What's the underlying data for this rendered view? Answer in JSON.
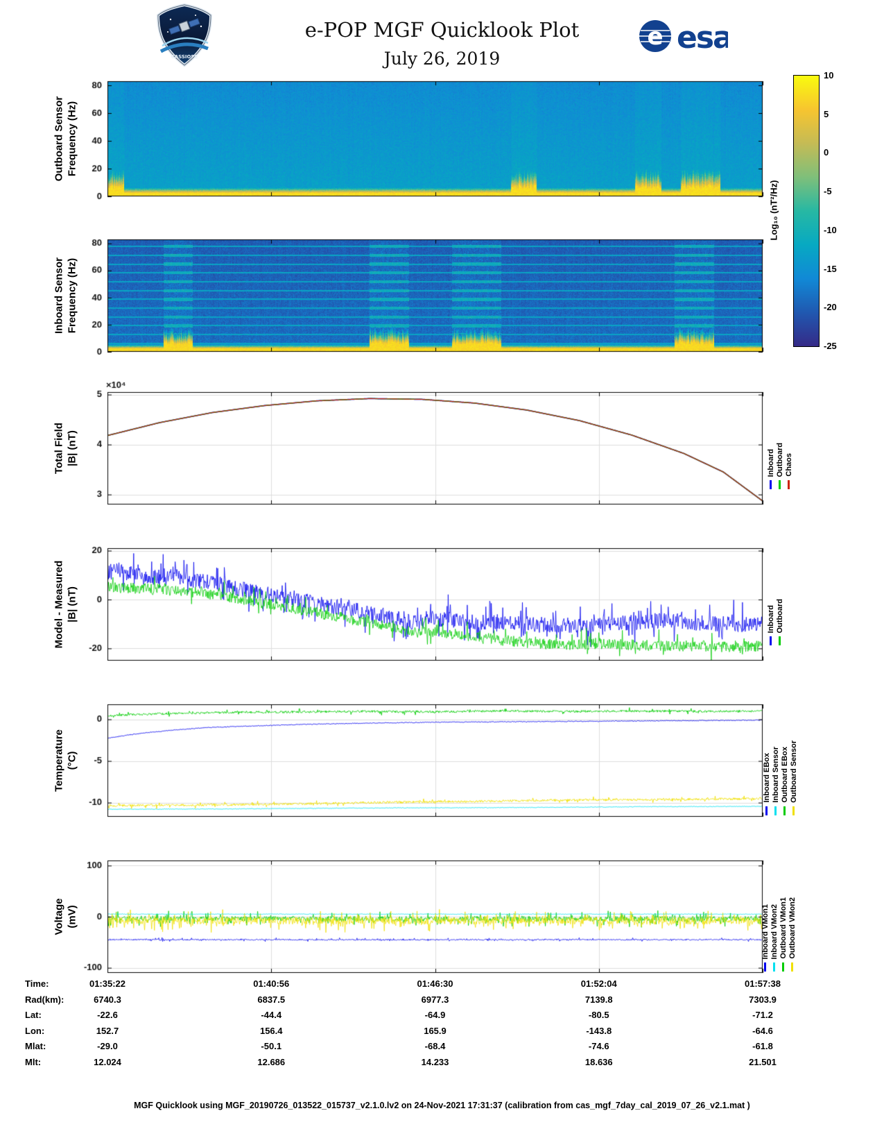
{
  "header": {
    "title": "e-POP MGF Quicklook Plot",
    "date": "July 26, 2019",
    "esa_text": "esa",
    "patch_text": "CASSIOPE",
    "esa_blue": "#12418f"
  },
  "colorbar": {
    "label": "Log₁₀ (nT²/Hz)",
    "ticks": [
      10,
      5,
      0,
      -5,
      -10,
      -15,
      -20,
      -25
    ],
    "min": -25,
    "max": 10,
    "colormap": [
      "#352a87",
      "#2058b0",
      "#1189d6",
      "#07a9c2",
      "#27b8a3",
      "#7fbf7a",
      "#c5bb55",
      "#f7c52f",
      "#f9fb0e"
    ]
  },
  "chart_data": [
    {
      "id": "spec_out",
      "type": "heatmap",
      "ylabel": "Outboard Sensor\nFrequency (Hz)",
      "yticks": [
        0,
        20,
        40,
        60,
        80
      ],
      "ymax": 83,
      "value_range": [
        -25,
        10
      ],
      "base_level": -13.0,
      "top_level": -15.8,
      "noise": 1.5,
      "col_noise": 0.7,
      "band_freq": 2.6,
      "band_level": 7.5,
      "band_fade": 6.5,
      "harmonics": [],
      "harmonic_level": 0,
      "disturbances": [
        [
          0.0,
          0.025
        ],
        [
          0.615,
          0.655
        ],
        [
          0.805,
          0.845
        ],
        [
          0.875,
          0.935
        ]
      ],
      "seed": 11
    },
    {
      "id": "spec_in",
      "type": "heatmap",
      "ylabel": "Inboard Sensor\nFrequency (Hz)",
      "yticks": [
        0,
        20,
        40,
        60,
        80
      ],
      "ymax": 83,
      "value_range": [
        -25,
        10
      ],
      "base_level": -18.6,
      "top_level": -20.2,
      "noise": 1.6,
      "col_noise": 1.0,
      "band_freq": 2.6,
      "band_level": 7.2,
      "band_fade": 6.0,
      "harmonics": [
        6.5,
        13,
        19.5,
        26,
        32.5,
        39,
        45.5,
        52,
        58.5,
        65,
        71.5,
        78
      ],
      "harmonic_level": -12.5,
      "disturbances": [
        [
          0.085,
          0.13
        ],
        [
          0.4,
          0.46
        ],
        [
          0.525,
          0.6
        ],
        [
          0.865,
          0.925
        ]
      ],
      "seed": 23
    },
    {
      "id": "total",
      "type": "line",
      "ylabel": "Total Field\n|B| (nT)",
      "scale_label": "×10⁴",
      "yrange": [
        2.8,
        5.05
      ],
      "yticks": [
        5,
        4,
        3
      ],
      "xticks": [
        "01:35:22",
        "01:40:56",
        "01:46:30",
        "01:52:04",
        "01:57:38"
      ],
      "series": [
        {
          "name": "Inboard",
          "color": "#0000ee",
          "width": 1.7,
          "noise": 0,
          "points": [
            [
              0,
              4.18
            ],
            [
              0.08,
              4.44
            ],
            [
              0.16,
              4.64
            ],
            [
              0.24,
              4.78
            ],
            [
              0.32,
              4.875
            ],
            [
              0.4,
              4.92
            ],
            [
              0.48,
              4.905
            ],
            [
              0.56,
              4.83
            ],
            [
              0.64,
              4.69
            ],
            [
              0.72,
              4.48
            ],
            [
              0.8,
              4.19
            ],
            [
              0.88,
              3.82
            ],
            [
              0.94,
              3.45
            ],
            [
              1,
              2.87
            ]
          ]
        },
        {
          "name": "Outboard",
          "color": "#00cc00",
          "width": 1.3,
          "noise": 0,
          "points": [
            [
              0,
              4.18
            ],
            [
              0.08,
              4.44
            ],
            [
              0.16,
              4.64
            ],
            [
              0.24,
              4.78
            ],
            [
              0.32,
              4.875
            ],
            [
              0.4,
              4.92
            ],
            [
              0.48,
              4.905
            ],
            [
              0.56,
              4.83
            ],
            [
              0.64,
              4.69
            ],
            [
              0.72,
              4.48
            ],
            [
              0.8,
              4.19
            ],
            [
              0.88,
              3.82
            ],
            [
              0.94,
              3.45
            ],
            [
              1,
              2.87
            ]
          ]
        },
        {
          "name": "Chaos",
          "color": "#cc2200",
          "width": 1.1,
          "noise": 0,
          "points": [
            [
              0,
              4.18
            ],
            [
              0.08,
              4.44
            ],
            [
              0.16,
              4.64
            ],
            [
              0.24,
              4.78
            ],
            [
              0.32,
              4.875
            ],
            [
              0.4,
              4.92
            ],
            [
              0.48,
              4.905
            ],
            [
              0.56,
              4.83
            ],
            [
              0.64,
              4.69
            ],
            [
              0.72,
              4.48
            ],
            [
              0.8,
              4.19
            ],
            [
              0.88,
              3.82
            ],
            [
              0.94,
              3.45
            ],
            [
              1,
              2.87
            ]
          ]
        }
      ],
      "legend": [
        {
          "label": "Inboard",
          "color": "#0000ee"
        },
        {
          "label": "Outboard",
          "color": "#00cc00"
        },
        {
          "label": "Chaos",
          "color": "#cc2200"
        }
      ]
    },
    {
      "id": "model",
      "type": "line",
      "ylabel": "Model - Measured\n|B| (nT)",
      "yrange": [
        -25,
        21
      ],
      "yticks": [
        20,
        0,
        -20
      ],
      "series": [
        {
          "name": "Inboard",
          "color": "#0000ee",
          "width": 0.8,
          "noise": 3.2,
          "spike": 0.15,
          "points": [
            [
              0,
              11.5
            ],
            [
              0.04,
              10.5
            ],
            [
              0.07,
              9
            ],
            [
              0.1,
              10
            ],
            [
              0.13,
              8
            ],
            [
              0.17,
              6.5
            ],
            [
              0.2,
              4.5
            ],
            [
              0.24,
              2.5
            ],
            [
              0.28,
              0.5
            ],
            [
              0.32,
              -1.5
            ],
            [
              0.36,
              -3.5
            ],
            [
              0.4,
              -5.5
            ],
            [
              0.44,
              -7.5
            ],
            [
              0.465,
              -10
            ],
            [
              0.49,
              -7.5
            ],
            [
              0.53,
              -8.5
            ],
            [
              0.58,
              -9.5
            ],
            [
              0.64,
              -10
            ],
            [
              0.7,
              -10.5
            ],
            [
              0.76,
              -10
            ],
            [
              0.82,
              -9
            ],
            [
              0.86,
              -8.5
            ],
            [
              0.9,
              -9.5
            ],
            [
              0.95,
              -10
            ],
            [
              1,
              -10.5
            ]
          ]
        },
        {
          "name": "Outboard",
          "color": "#00cc00",
          "width": 0.8,
          "noise": 2.2,
          "spike": 0.1,
          "points": [
            [
              0,
              5
            ],
            [
              0.05,
              4.5
            ],
            [
              0.1,
              4
            ],
            [
              0.15,
              2.5
            ],
            [
              0.2,
              0.5
            ],
            [
              0.25,
              -2
            ],
            [
              0.3,
              -4.5
            ],
            [
              0.35,
              -7
            ],
            [
              0.4,
              -9.5
            ],
            [
              0.44,
              -12
            ],
            [
              0.47,
              -13.5
            ],
            [
              0.5,
              -13
            ],
            [
              0.55,
              -15
            ],
            [
              0.6,
              -16.5
            ],
            [
              0.65,
              -18
            ],
            [
              0.7,
              -18.5
            ],
            [
              0.75,
              -18
            ],
            [
              0.8,
              -18.5
            ],
            [
              0.85,
              -19
            ],
            [
              0.9,
              -19
            ],
            [
              0.95,
              -19.5
            ],
            [
              1,
              -19
            ]
          ]
        }
      ],
      "legend": [
        {
          "label": "Inboard",
          "color": "#0000ee"
        },
        {
          "label": "Outboard",
          "color": "#00cc00"
        }
      ]
    },
    {
      "id": "temp",
      "type": "line",
      "ylabel": "Temperature\n(°C)",
      "yrange": [
        -11.7,
        1.8
      ],
      "yticks": [
        0,
        -5,
        -10
      ],
      "series": [
        {
          "name": "Outboard Sensor",
          "color": "#00e0f0",
          "width": 0.9,
          "noise": 0.04,
          "points": [
            [
              0,
              -10.8
            ],
            [
              0.2,
              -10.75
            ],
            [
              0.4,
              -10.65
            ],
            [
              0.6,
              -10.6
            ],
            [
              0.8,
              -10.5
            ],
            [
              1,
              -10.45
            ]
          ]
        },
        {
          "name": "Outboard EBox",
          "color": "#f0e000",
          "width": 0.9,
          "noise": 0.14,
          "spike": 0.06,
          "points": [
            [
              0,
              -10.35
            ],
            [
              0.1,
              -10.3
            ],
            [
              0.2,
              -10.25
            ],
            [
              0.3,
              -10.15
            ],
            [
              0.4,
              -10.0
            ],
            [
              0.5,
              -9.9
            ],
            [
              0.6,
              -9.8
            ],
            [
              0.7,
              -9.7
            ],
            [
              0.8,
              -9.65
            ],
            [
              0.9,
              -9.6
            ],
            [
              1,
              -9.5
            ]
          ]
        },
        {
          "name": "Inboard EBox",
          "color": "#0000ee",
          "width": 0.9,
          "noise": 0.05,
          "points": [
            [
              0,
              -2.25
            ],
            [
              0.03,
              -1.9
            ],
            [
              0.06,
              -1.6
            ],
            [
              0.1,
              -1.3
            ],
            [
              0.15,
              -1.0
            ],
            [
              0.2,
              -0.85
            ],
            [
              0.3,
              -0.6
            ],
            [
              0.4,
              -0.45
            ],
            [
              0.5,
              -0.35
            ],
            [
              0.6,
              -0.3
            ],
            [
              0.7,
              -0.25
            ],
            [
              0.8,
              -0.2
            ],
            [
              0.9,
              -0.15
            ],
            [
              1,
              -0.1
            ]
          ]
        },
        {
          "name": "Outboard EBox line",
          "color": "#00cc00",
          "width": 0.9,
          "noise": 0.13,
          "spike": 0.06,
          "points": [
            [
              0,
              0.45
            ],
            [
              0.05,
              0.6
            ],
            [
              0.1,
              0.7
            ],
            [
              0.2,
              0.85
            ],
            [
              0.3,
              0.9
            ],
            [
              0.4,
              0.95
            ],
            [
              0.5,
              0.9
            ],
            [
              0.6,
              1.0
            ],
            [
              0.7,
              0.95
            ],
            [
              0.8,
              1.0
            ],
            [
              0.9,
              0.95
            ],
            [
              1,
              1.0
            ]
          ]
        }
      ],
      "legend": [
        {
          "label": "Inboard EBox",
          "color": "#0000ee"
        },
        {
          "label": "Inboard Sensor",
          "color": "#00e0f0"
        },
        {
          "label": "Outboard EBox",
          "color": "#00cc00"
        },
        {
          "label": "Outboard Sensor",
          "color": "#f0e000"
        }
      ]
    },
    {
      "id": "volt",
      "type": "line",
      "ylabel": "Voltage\n(mV)",
      "yrange": [
        -110,
        110
      ],
      "yticks": [
        100,
        0,
        -100
      ],
      "series": [
        {
          "name": "Outboard VMon1",
          "color": "#00cc00",
          "width": 0.8,
          "noise": 5,
          "spike": 0.18,
          "points": [
            [
              0,
              -4
            ],
            [
              1,
              -4
            ]
          ]
        },
        {
          "name": "Outboard VMon2",
          "color": "#f0e000",
          "width": 0.8,
          "noise": 7,
          "spike": 0.2,
          "points": [
            [
              0,
              -8
            ],
            [
              1,
              -8
            ]
          ]
        },
        {
          "name": "Inboard VMon1",
          "color": "#0000ee",
          "width": 0.8,
          "noise": 1.3,
          "spike": 0.1,
          "points": [
            [
              0,
              -45
            ],
            [
              1,
              -45
            ]
          ]
        },
        {
          "name": "Inboard VMon2",
          "color": "#00e0f0",
          "width": 0.8,
          "noise": 0.7,
          "points": [
            [
              0,
              5
            ],
            [
              1,
              5
            ]
          ]
        }
      ],
      "legend": [
        {
          "label": "Inboard VMon1",
          "color": "#0000ee"
        },
        {
          "label": "Inboard VMon2",
          "color": "#00e0f0"
        },
        {
          "label": "Outboard VMon1",
          "color": "#00cc00"
        },
        {
          "label": "Outboard VMon2",
          "color": "#f0e000"
        }
      ]
    }
  ],
  "table": {
    "row_labels": [
      "Time:",
      "Rad(km):",
      "Lat:",
      "Lon:",
      "Mlat:",
      "Mlt:"
    ],
    "columns": [
      [
        "01:35:22",
        "6740.3",
        "-22.6",
        "152.7",
        "-29.0",
        "12.024"
      ],
      [
        "01:40:56",
        "6837.5",
        "-44.4",
        "156.4",
        "-50.1",
        "12.686"
      ],
      [
        "01:46:30",
        "6977.3",
        "-64.9",
        "165.9",
        "-68.4",
        "14.233"
      ],
      [
        "01:52:04",
        "7139.8",
        "-80.5",
        "-143.8",
        "-74.6",
        "18.636"
      ],
      [
        "01:57:38",
        "7303.9",
        "-71.2",
        "-64.6",
        "-61.8",
        "21.501"
      ]
    ]
  },
  "footer": "MGF Quicklook using MGF_20190726_013522_015737_v2.1.0.lv2 on 24-Nov-2021 17:31:37 (calibration from cas_mgf_7day_cal_2019_07_26_v2.1.mat )"
}
